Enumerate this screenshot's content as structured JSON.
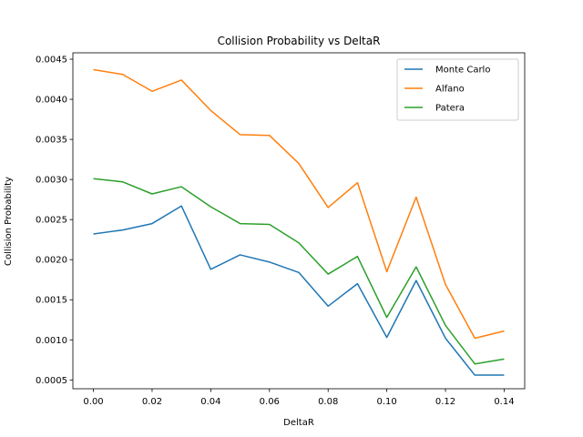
{
  "chart_data": {
    "type": "line",
    "title": "Collision Probability vs DeltaR",
    "xlabel": "DeltaR",
    "ylabel": "Collision Probability",
    "x": [
      0.0,
      0.01,
      0.02,
      0.03,
      0.04,
      0.05,
      0.06,
      0.07,
      0.08,
      0.09,
      0.1,
      0.11,
      0.12,
      0.13,
      0.14
    ],
    "xlim": [
      -0.007,
      0.147
    ],
    "ylim": [
      0.00039,
      0.00458
    ],
    "xticks": [
      "0.00",
      "0.02",
      "0.04",
      "0.06",
      "0.08",
      "0.10",
      "0.12",
      "0.14"
    ],
    "xtick_values": [
      0.0,
      0.02,
      0.04,
      0.06,
      0.08,
      0.1,
      0.12,
      0.14
    ],
    "yticks": [
      "0.0005",
      "0.0010",
      "0.0015",
      "0.0020",
      "0.0025",
      "0.0030",
      "0.0035",
      "0.0040",
      "0.0045"
    ],
    "ytick_values": [
      0.0005,
      0.001,
      0.0015,
      0.002,
      0.0025,
      0.003,
      0.0035,
      0.004,
      0.0045
    ],
    "grid": false,
    "legend_position": "top-right",
    "series": [
      {
        "name": "Monte Carlo",
        "color": "#1f77b4",
        "values": [
          0.00232,
          0.00237,
          0.00245,
          0.00267,
          0.00188,
          0.00206,
          0.00197,
          0.00184,
          0.00142,
          0.0017,
          0.00103,
          0.00174,
          0.00102,
          0.00056,
          0.00056
        ]
      },
      {
        "name": "Alfano",
        "color": "#ff7f0e",
        "values": [
          0.00437,
          0.00431,
          0.0041,
          0.00424,
          0.00386,
          0.00356,
          0.00355,
          0.0032,
          0.00265,
          0.00296,
          0.00185,
          0.00278,
          0.00169,
          0.00102,
          0.00111
        ]
      },
      {
        "name": "Patera",
        "color": "#2ca02c",
        "values": [
          0.00301,
          0.00297,
          0.00282,
          0.00291,
          0.00266,
          0.00245,
          0.00244,
          0.00221,
          0.00182,
          0.00204,
          0.00128,
          0.00191,
          0.00118,
          0.0007,
          0.00076
        ]
      }
    ]
  }
}
